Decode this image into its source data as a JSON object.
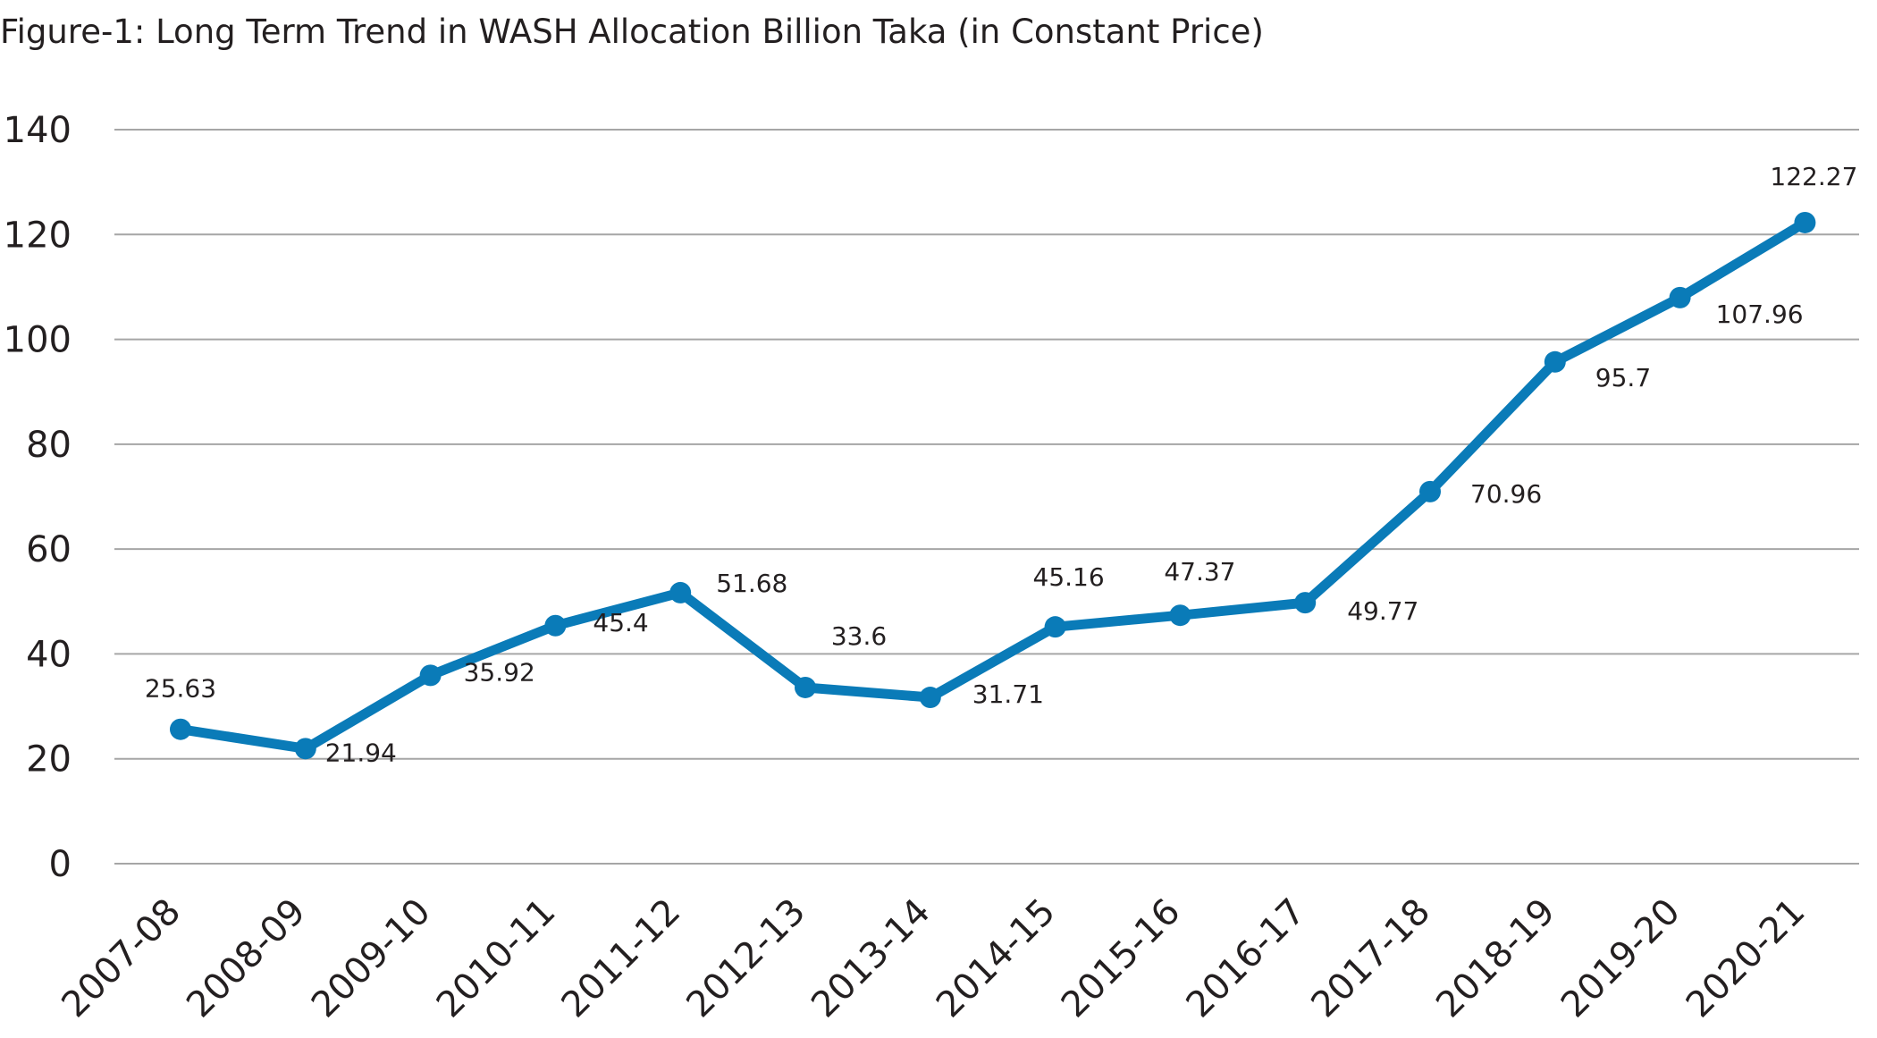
{
  "chart_data": {
    "type": "line",
    "title": "Figure-1: Long Term Trend in WASH Allocation Billion Taka (in Constant Price)",
    "xlabel": "",
    "ylabel": "",
    "categories": [
      "2007-08",
      "2008-09",
      "2009-10",
      "2010-11",
      "2011-12",
      "2012-13",
      "2013-14",
      "2014-15",
      "2015-16",
      "2016-17",
      "2017-18",
      "2018-19",
      "2019-20",
      "2020-21"
    ],
    "series": [
      {
        "values": [
          25.63,
          21.94,
          35.92,
          45.4,
          51.68,
          33.6,
          31.71,
          45.16,
          47.37,
          49.77,
          70.96,
          95.7,
          107.96,
          122.27
        ],
        "data_labels": [
          "25.63",
          "21.94",
          "35.92",
          "45.4",
          "51.68",
          "33.6",
          "31.71",
          "45.16",
          "47.37",
          "49.77",
          "70.96",
          "95.7",
          "107.96",
          "122.27"
        ]
      }
    ],
    "ylim": [
      0,
      140
    ],
    "yticks": [
      0,
      20,
      40,
      60,
      80,
      100,
      120,
      140
    ],
    "grid": true,
    "legend": "none",
    "colors": {
      "line": "#0a7bb8",
      "grid": "#a6a6a6",
      "text": "#231f20"
    }
  }
}
